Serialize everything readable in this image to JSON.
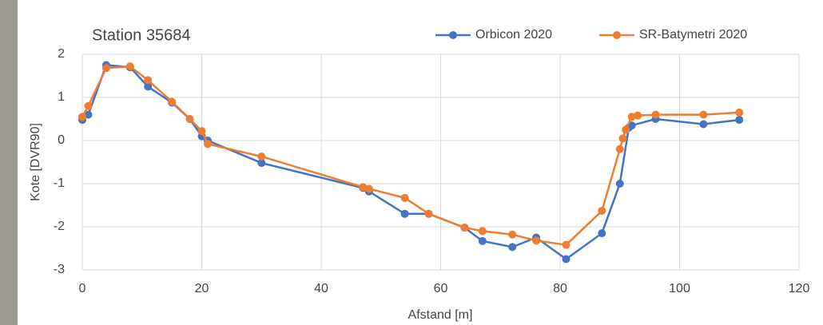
{
  "chart_data": {
    "type": "line",
    "title": "Station 35684",
    "x_label": "Afstand [m]",
    "y_label": "Kote [DVR90]",
    "xlim": [
      0,
      120
    ],
    "xticks": [
      0,
      20,
      40,
      60,
      80,
      100,
      120
    ],
    "ylim": [
      -3,
      2
    ],
    "yticks": [
      -3,
      -2,
      -1,
      0,
      1,
      2
    ],
    "grid": true,
    "legend": "top-right",
    "series": [
      {
        "name": "Orbicon 2020",
        "color": "#4472c4",
        "x": [
          0,
          1,
          4,
          8,
          11,
          15,
          18,
          20,
          21,
          30,
          47,
          48,
          54,
          58,
          64,
          67,
          72,
          76,
          81,
          87,
          90,
          91.5,
          92,
          96,
          104,
          110
        ],
        "values": [
          0.48,
          0.6,
          1.75,
          1.7,
          1.25,
          0.88,
          0.5,
          0.1,
          0.0,
          -0.52,
          -1.1,
          -1.18,
          -1.7,
          -1.7,
          -2.02,
          -2.33,
          -2.47,
          -2.25,
          -2.75,
          -2.15,
          -1.0,
          0.3,
          0.35,
          0.5,
          0.38,
          0.48
        ]
      },
      {
        "name": "SR-Batymetri 2020",
        "color": "#ed7d31",
        "x": [
          0,
          1,
          4,
          8,
          11,
          15,
          18,
          20,
          21,
          30,
          47,
          48,
          54,
          58,
          64,
          67,
          72,
          76,
          81,
          87,
          90,
          90.5,
          91,
          92,
          93,
          96,
          104,
          110
        ],
        "values": [
          0.55,
          0.8,
          1.68,
          1.72,
          1.4,
          0.9,
          0.5,
          0.22,
          -0.08,
          -0.37,
          -1.08,
          -1.12,
          -1.33,
          -1.7,
          -2.02,
          -2.1,
          -2.18,
          -2.32,
          -2.42,
          -1.63,
          -0.2,
          0.05,
          0.25,
          0.55,
          0.58,
          0.6,
          0.6,
          0.65
        ]
      }
    ]
  }
}
